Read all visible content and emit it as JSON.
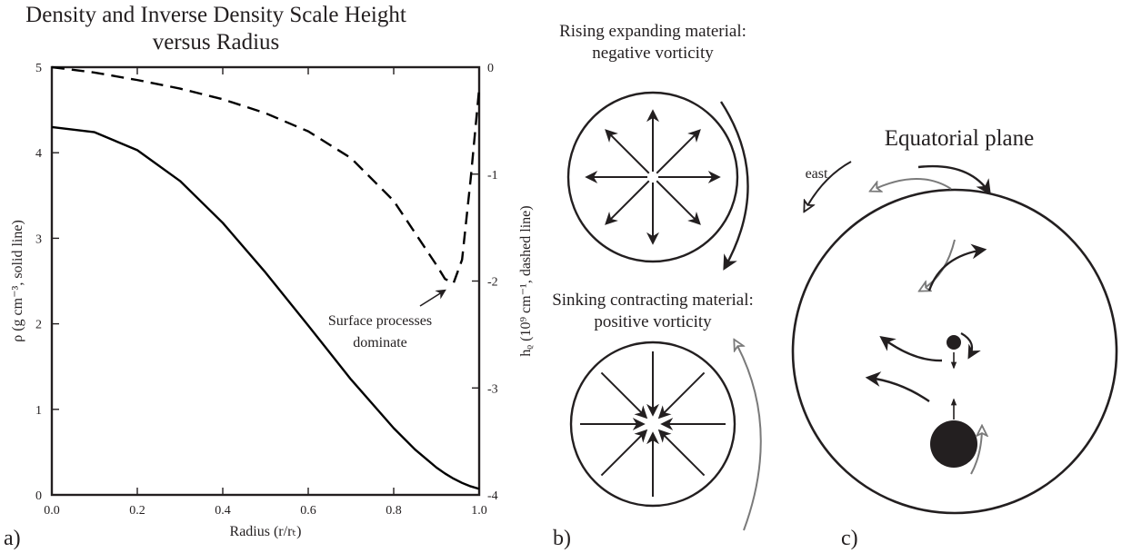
{
  "chart_data": {
    "type": "line",
    "title": "Density and Inverse Density Scale Height versus Radius",
    "xlabel": "Radius (r/rₜ)",
    "ylabel": "ρ (g cm⁻³, solid line)",
    "y2label": "hᵨ (10⁹ cm⁻¹, dashed line)",
    "annotation": [
      "Surface processes",
      "dominate"
    ],
    "x": [
      0,
      0.1,
      0.2,
      0.3,
      0.4,
      0.5,
      0.6,
      0.7,
      0.8,
      0.85,
      0.9,
      0.92,
      0.94,
      0.96,
      0.98,
      1.0
    ],
    "series": [
      {
        "color": "#000000",
        "dash": false,
        "values": [
          4.3,
          4.24,
          4.03,
          3.67,
          3.18,
          2.6,
          1.98,
          1.35,
          0.78,
          0.53,
          0.32,
          0.25,
          0.19,
          0.14,
          0.1,
          0.07
        ]
      },
      {
        "color": "#000000",
        "dash": true,
        "axis": "y2",
        "values": [
          0,
          -0.05,
          -0.12,
          -0.2,
          -0.3,
          -0.43,
          -0.6,
          -0.85,
          -1.25,
          -1.55,
          -1.85,
          -1.98,
          -2.02,
          -1.8,
          -1.05,
          -0.2
        ]
      }
    ],
    "xlim": [
      0,
      1
    ],
    "xticks": [
      {
        "value": 0,
        "label": "0.0"
      },
      {
        "value": 0.2,
        "label": "0.2"
      },
      {
        "value": 0.4,
        "label": "0.4"
      },
      {
        "value": 0.6,
        "label": "0.6"
      },
      {
        "value": 0.8,
        "label": "0.8"
      },
      {
        "value": 1,
        "label": "1.0"
      }
    ],
    "ylim": [
      0,
      5
    ],
    "yticks": [
      0,
      1,
      2,
      3,
      4,
      5
    ],
    "y2lim": [
      -4,
      0
    ],
    "y2ticks": [
      -4,
      -3,
      -2,
      -1,
      0
    ]
  },
  "panels": {
    "a": "a)",
    "b": "b)",
    "c": "c)"
  },
  "diagram_b": {
    "top_label": [
      "Rising expanding material:",
      "negative vorticity"
    ],
    "bottom_label": [
      "Sinking contracting material:",
      "positive vorticity"
    ]
  },
  "diagram_c": {
    "title": "Equatorial plane",
    "east": "east"
  }
}
